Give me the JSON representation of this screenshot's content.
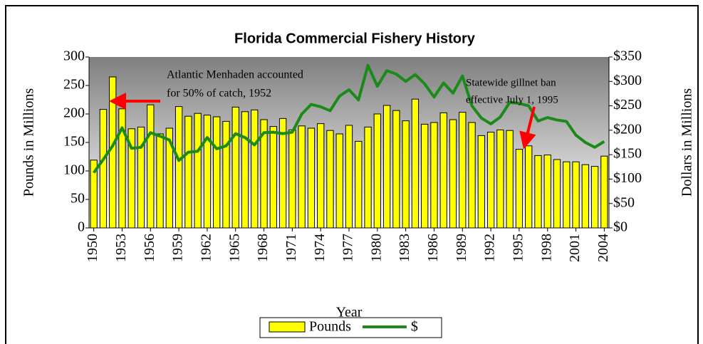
{
  "chart_data": {
    "type": "bar_line",
    "title": "Florida Commercial Fishery History",
    "xlabel": "Year",
    "ylabel": "Pounds in Millions",
    "y2label": "Dollars in Millions",
    "categories": [
      "1950",
      null,
      null,
      "1953",
      null,
      null,
      "1956",
      null,
      null,
      "1959",
      null,
      null,
      "1962",
      null,
      null,
      "1965",
      null,
      null,
      "1968",
      null,
      null,
      "1971",
      null,
      null,
      "1974",
      null,
      null,
      "1977",
      null,
      null,
      "1980",
      null,
      null,
      "1983",
      null,
      null,
      "1986",
      null,
      null,
      "1989",
      null,
      null,
      "1992",
      null,
      null,
      "1995",
      null,
      null,
      "1998",
      null,
      null,
      "2001",
      null,
      null,
      "2004"
    ],
    "series": [
      {
        "name": "Pounds",
        "color": "#ffff00",
        "values": [
          119,
          208,
          265,
          209,
          174,
          177,
          216,
          165,
          175,
          213,
          196,
          201,
          198,
          195,
          187,
          212,
          204,
          207,
          190,
          178,
          192,
          172,
          179,
          175,
          183,
          171,
          165,
          180,
          152,
          177,
          200,
          215,
          206,
          188,
          226,
          182,
          185,
          202,
          190,
          203,
          185,
          162,
          168,
          172,
          171,
          138,
          144,
          127,
          128,
          120,
          116,
          116,
          111,
          108,
          126
        ]
      },
      {
        "name": "$",
        "color": "#1a8a1a",
        "axis": "y2",
        "values": [
          113,
          140,
          168,
          205,
          163,
          165,
          195,
          188,
          180,
          138,
          155,
          157,
          185,
          162,
          168,
          193,
          185,
          170,
          195,
          196,
          193,
          196,
          233,
          253,
          248,
          240,
          270,
          283,
          262,
          333,
          290,
          322,
          315,
          300,
          314,
          295,
          268,
          297,
          276,
          311,
          250,
          225,
          213,
          227,
          257,
          255,
          250,
          219,
          226,
          221,
          218,
          190,
          175,
          165,
          177
        ]
      }
    ],
    "ylim": [
      0,
      300
    ],
    "yticks": [
      0,
      50,
      100,
      150,
      200,
      250,
      300
    ],
    "y2lim": [
      0,
      350
    ],
    "y2ticks": [
      {
        "value": 0,
        "label": "$0"
      },
      {
        "value": 50,
        "label": "$50"
      },
      {
        "value": 100,
        "label": "$100"
      },
      {
        "value": 150,
        "label": "$150"
      },
      {
        "value": 200,
        "label": "$200"
      },
      {
        "value": 250,
        "label": "$250"
      },
      {
        "value": 300,
        "label": "$300"
      },
      {
        "value": 350,
        "label": "$350"
      }
    ],
    "legend": "bottom",
    "annotations": [
      {
        "lines": [
          "Atlantic Menhaden accounted",
          "for 50% of catch, 1952"
        ]
      },
      {
        "lines": [
          "Statewide gillnet ban",
          "effective July 1, 1995"
        ]
      }
    ]
  }
}
